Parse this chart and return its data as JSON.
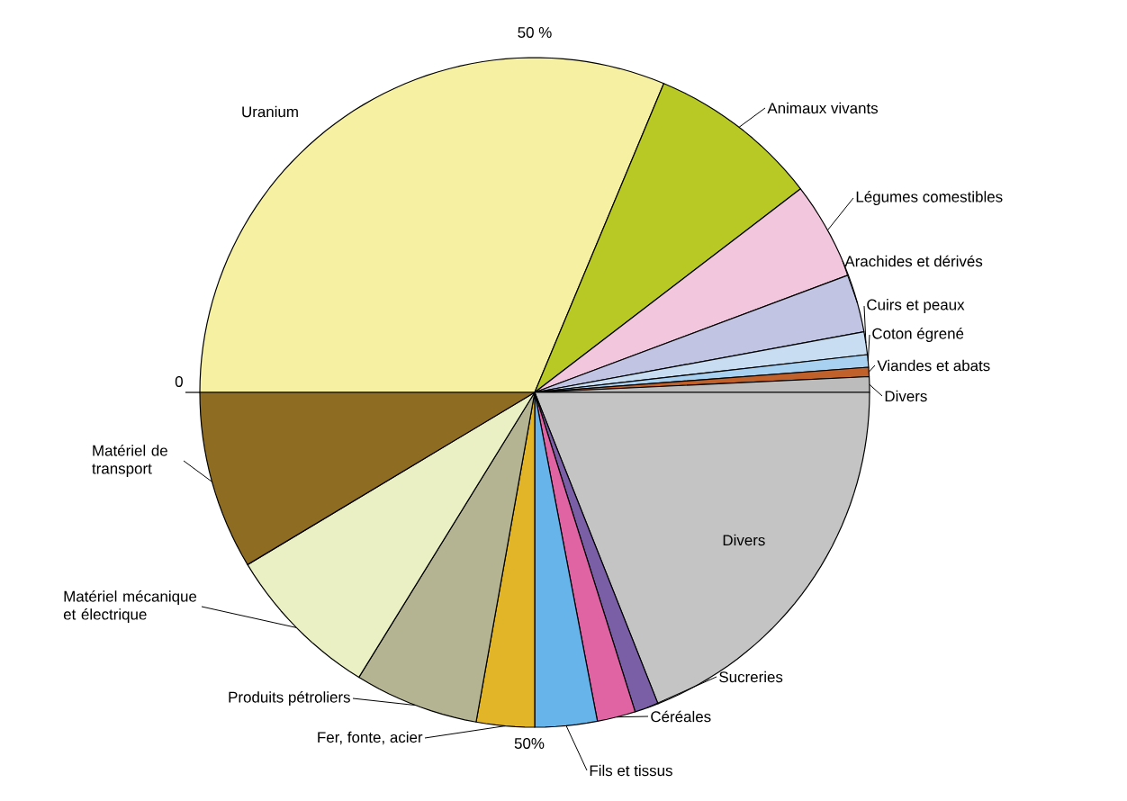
{
  "chart_data": {
    "type": "pie",
    "categories": [
      "Uranium",
      "Animaux vivants",
      "Légumes comestibles",
      "Arachides et dérivés",
      "Cuirs et peaux",
      "Coton égrené",
      "Viandes et abats",
      "Divers",
      "Divers",
      "Sucreries",
      "Céréales",
      "Fils et tissus",
      "Fer, fonte, acier",
      "Produits pétroliers",
      "Matériel mécanique et électrique",
      "Matériel de transport"
    ],
    "values": [
      31.3,
      8.3,
      4.7,
      2.8,
      1.1,
      0.6,
      0.45,
      0.75,
      19,
      1.15,
      1.85,
      3,
      2.8,
      6,
      7.6,
      8.6
    ],
    "colors": [
      "#f6f0a2",
      "#b8c825",
      "#f2c6dc",
      "#c2c4e4",
      "#c8dcf2",
      "#a8d0f0",
      "#c0602a",
      "#bcbcbc",
      "#c4c4c4",
      "#7a5ea6",
      "#e064a4",
      "#66b4ea",
      "#e2b428",
      "#b4b492",
      "#eaf0c4",
      "#8e6c22"
    ],
    "annotations": [
      "0",
      "50 %",
      "50%"
    ]
  }
}
